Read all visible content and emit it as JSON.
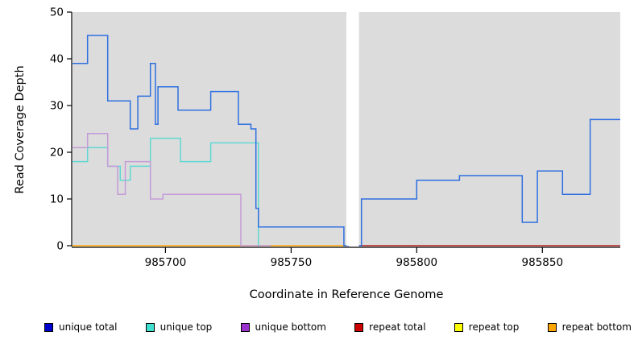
{
  "chart_data": {
    "type": "line",
    "subtype": "step-coverage-plot",
    "title": "",
    "xlabel": "Coordinate in Reference Genome",
    "ylabel": "Read Coverage Depth",
    "xlim": [
      985663,
      985881
    ],
    "ylim": [
      0,
      50
    ],
    "x_ticks": [
      985700,
      985750,
      985800,
      985850
    ],
    "y_ticks": [
      0,
      10,
      20,
      30,
      40,
      50
    ],
    "panel_bg": "#DCDCDC",
    "gap_band_color": "#FFFFFF",
    "gap_region": [
      985772,
      985777
    ],
    "axis_color": "#000000",
    "series": [
      {
        "name": "repeat bottom",
        "color": "#FFA500",
        "steps": [
          [
            985663,
            0
          ]
        ],
        "end": 985772
      },
      {
        "name": "repeat total",
        "color": "#B22222",
        "steps": [
          [
            985777,
            0
          ]
        ],
        "end": 985881
      },
      {
        "name": "unique top",
        "color": "#5FD8D2",
        "steps": [
          [
            985663,
            18
          ],
          [
            985669,
            21
          ],
          [
            985677,
            17
          ],
          [
            985682,
            14
          ],
          [
            985686,
            17
          ],
          [
            985694,
            23
          ],
          [
            985706,
            18
          ],
          [
            985718,
            22
          ],
          [
            985737,
            0
          ]
        ],
        "end": 985738
      },
      {
        "name": "unique bottom",
        "color": "#C49BD8",
        "steps": [
          [
            985663,
            21
          ],
          [
            985669,
            24
          ],
          [
            985677,
            17
          ],
          [
            985681,
            11
          ],
          [
            985684,
            18
          ],
          [
            985694,
            10
          ],
          [
            985699,
            11
          ],
          [
            985730,
            0
          ]
        ],
        "end": 985742
      },
      {
        "name": "unique total left",
        "color": "#2E6FE0",
        "steps": [
          [
            985663,
            39
          ],
          [
            985669,
            45
          ],
          [
            985677,
            31
          ],
          [
            985686,
            25
          ],
          [
            985689,
            32
          ],
          [
            985694,
            39
          ],
          [
            985696,
            26
          ],
          [
            985697,
            34
          ],
          [
            985705,
            29
          ],
          [
            985718,
            33
          ],
          [
            985729,
            26
          ],
          [
            985734,
            25
          ],
          [
            985736,
            8
          ],
          [
            985737,
            4
          ],
          [
            985771,
            0
          ]
        ],
        "end": 985773
      },
      {
        "name": "unique total right",
        "color": "#2E6FE0",
        "steps": [
          [
            985777,
            0
          ],
          [
            985778,
            10
          ],
          [
            985800,
            14
          ],
          [
            985817,
            15
          ],
          [
            985842,
            5
          ],
          [
            985848,
            16
          ],
          [
            985858,
            11
          ],
          [
            985869,
            27
          ]
        ],
        "end": 985881
      }
    ],
    "legend": [
      {
        "label": "unique total",
        "color": "#0000CD"
      },
      {
        "label": "unique top",
        "color": "#40E0D0"
      },
      {
        "label": "unique bottom",
        "color": "#9932CC"
      },
      {
        "label": "repeat total",
        "color": "#CC0000"
      },
      {
        "label": "repeat top",
        "color": "#FFFF00"
      },
      {
        "label": "repeat bottom",
        "color": "#FFA500"
      }
    ]
  }
}
